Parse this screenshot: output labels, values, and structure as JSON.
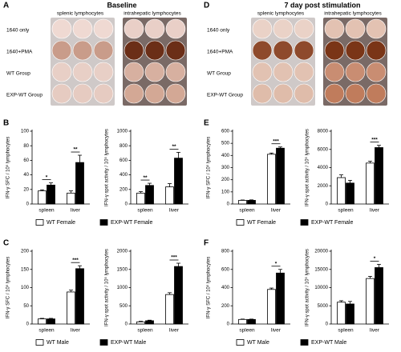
{
  "photo_panels": [
    {
      "letter": "A",
      "title": "Baseline",
      "column_labels": [
        "splenic lymphocytes",
        "intrahepatic lymphocytes"
      ],
      "row_labels": [
        "1640 only",
        "1640+PMA",
        "WT Group",
        "EXP-WT Group"
      ]
    },
    {
      "letter": "D",
      "title": "7 day post stimulation",
      "column_labels": [
        "splenic lymphocytes",
        "intrahepatic lymphocytes"
      ],
      "row_labels": [
        "1640 only",
        "1640+PMA",
        "WT Group",
        "EXP-WT Group"
      ]
    }
  ],
  "chart_data": [
    {
      "type": "bar",
      "panel": "B",
      "y_label": "IFN-γ SFC / 10⁵ lymphocytes",
      "categories": [
        "spleen",
        "liver"
      ],
      "ylim": [
        0,
        100
      ],
      "yticks": [
        0,
        20,
        40,
        60,
        80,
        100
      ],
      "significance": [
        "*",
        "**"
      ],
      "series": [
        {
          "name": "WT Female",
          "color": "#ffffff",
          "values": [
            18,
            15
          ],
          "errors": [
            1.5,
            3
          ]
        },
        {
          "name": "EXP-WT Female",
          "color": "#000000",
          "values": [
            26,
            57
          ],
          "errors": [
            3,
            10
          ]
        }
      ]
    },
    {
      "type": "bar",
      "y_label": "IFN-γ spot activity / 10⁵ lymphocytes",
      "categories": [
        "spleen",
        "liver"
      ],
      "ylim": [
        0,
        1000
      ],
      "yticks": [
        0,
        200,
        400,
        600,
        800,
        1000
      ],
      "significance": [
        "**",
        "**"
      ],
      "series": [
        {
          "color": "#ffffff",
          "values": [
            150,
            235
          ],
          "errors": [
            20,
            45
          ]
        },
        {
          "color": "#000000",
          "values": [
            255,
            630
          ],
          "errors": [
            30,
            80
          ]
        }
      ]
    },
    {
      "type": "bar",
      "panel": "C",
      "y_label": "IFN-γ SFC / 10⁵ lymphocytes",
      "categories": [
        "spleen",
        "liver"
      ],
      "ylim": [
        0,
        200
      ],
      "yticks": [
        0,
        50,
        100,
        150,
        200
      ],
      "significance": [
        null,
        "***"
      ],
      "series": [
        {
          "name": "WT Male",
          "color": "#ffffff",
          "values": [
            14,
            88
          ],
          "errors": [
            1.5,
            5
          ]
        },
        {
          "name": "EXP-WT Male",
          "color": "#000000",
          "values": [
            14,
            152
          ],
          "errors": [
            1.5,
            8
          ]
        }
      ]
    },
    {
      "type": "bar",
      "y_label": "IFN-γ spot activity / 10⁵ lymphocytes",
      "categories": [
        "spleen",
        "liver"
      ],
      "ylim": [
        0,
        2000
      ],
      "yticks": [
        0,
        500,
        1000,
        1500,
        2000
      ],
      "significance": [
        null,
        "***"
      ],
      "series": [
        {
          "color": "#ffffff",
          "values": [
            60,
            810
          ],
          "errors": [
            15,
            50
          ]
        },
        {
          "color": "#000000",
          "values": [
            90,
            1580
          ],
          "errors": [
            15,
            90
          ]
        }
      ]
    },
    {
      "type": "bar",
      "panel": "E",
      "y_label": "IFN-γ SFC / 10⁵ lymphocytes",
      "categories": [
        "spleen",
        "liver"
      ],
      "ylim": [
        0,
        600
      ],
      "yticks": [
        0,
        100,
        200,
        300,
        400,
        500,
        600
      ],
      "significance": [
        null,
        "***"
      ],
      "series": [
        {
          "name": "WT Female",
          "color": "#ffffff",
          "values": [
            30,
            410
          ],
          "errors": [
            3,
            10
          ]
        },
        {
          "name": "EXP-WT Female",
          "color": "#000000",
          "values": [
            30,
            460
          ],
          "errors": [
            4,
            10
          ]
        }
      ]
    },
    {
      "type": "bar",
      "y_label": "IFN-γ spot activity / 10⁵ lymphocytes",
      "categories": [
        "spleen",
        "liver"
      ],
      "ylim": [
        0,
        8000
      ],
      "yticks": [
        0,
        2000,
        4000,
        6000,
        8000
      ],
      "significance": [
        null,
        "***"
      ],
      "series": [
        {
          "color": "#ffffff",
          "values": [
            2900,
            4500
          ],
          "errors": [
            300,
            200
          ]
        },
        {
          "color": "#000000",
          "values": [
            2300,
            6200
          ],
          "errors": [
            300,
            250
          ]
        }
      ]
    },
    {
      "type": "bar",
      "panel": "F",
      "y_label": "IFN-γ SFC / 10⁵ lymphocytes",
      "categories": [
        "spleen",
        "liver"
      ],
      "ylim": [
        0,
        800
      ],
      "yticks": [
        0,
        200,
        400,
        600,
        800
      ],
      "significance": [
        null,
        "*"
      ],
      "series": [
        {
          "name": "WT Male",
          "color": "#ffffff",
          "values": [
            50,
            380
          ],
          "errors": [
            4,
            15
          ]
        },
        {
          "name": "EXP-WT Male",
          "color": "#000000",
          "values": [
            50,
            560
          ],
          "errors": [
            4,
            40
          ]
        }
      ]
    },
    {
      "type": "bar",
      "y_label": "IFN-γ spot activity / 10⁵ lymphocytes",
      "categories": [
        "spleen",
        "liver"
      ],
      "ylim": [
        0,
        20000
      ],
      "yticks": [
        0,
        5000,
        10000,
        15000,
        20000
      ],
      "significance": [
        null,
        "*"
      ],
      "series": [
        {
          "color": "#ffffff",
          "values": [
            6000,
            12500
          ],
          "errors": [
            400,
            600
          ]
        },
        {
          "color": "#000000",
          "values": [
            5500,
            15500
          ],
          "errors": [
            700,
            900
          ]
        }
      ]
    }
  ]
}
